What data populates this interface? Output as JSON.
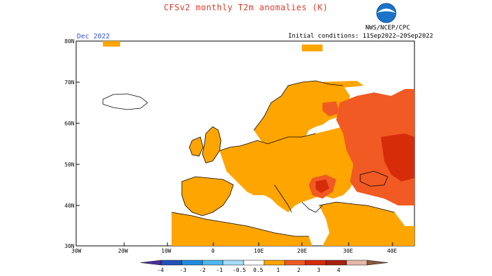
{
  "header": {
    "title": "CFSv2 monthly T2m anomalies (K)",
    "month": "Dec 2022",
    "initial_conditions": "Initial conditions: 11Sep2022–20Sep2022",
    "organization": "NWS/NCEP/CPC",
    "logo": "noaa-logo"
  },
  "map": {
    "lat_labels": [
      "80N",
      "70N",
      "60N",
      "50N",
      "40N",
      "30N"
    ],
    "lon_labels": [
      "30W",
      "20W",
      "10W",
      "0",
      "10E",
      "20E",
      "30E",
      "40E"
    ],
    "colors": {
      "ocean": "#ffffff",
      "land_neutral": "#ffffff",
      "anom_0_5_1": "#ffa500",
      "anom_1_2": "#f15a22",
      "anom_2_3": "#d62c0a",
      "coast": "#000000"
    }
  },
  "colorbar": {
    "labels": [
      "-4",
      "-3",
      "-2",
      "-1",
      "-0.5",
      "0.5",
      "1",
      "2",
      "3",
      "4"
    ],
    "colors": [
      "#4b2d9b",
      "#2252b8",
      "#1f8ce0",
      "#4fb8f0",
      "#a6dcf7",
      "#ffffff",
      "#ffa500",
      "#f15a22",
      "#d62c0a",
      "#a82010",
      "#e6b8a8",
      "#8a5a40"
    ]
  }
}
